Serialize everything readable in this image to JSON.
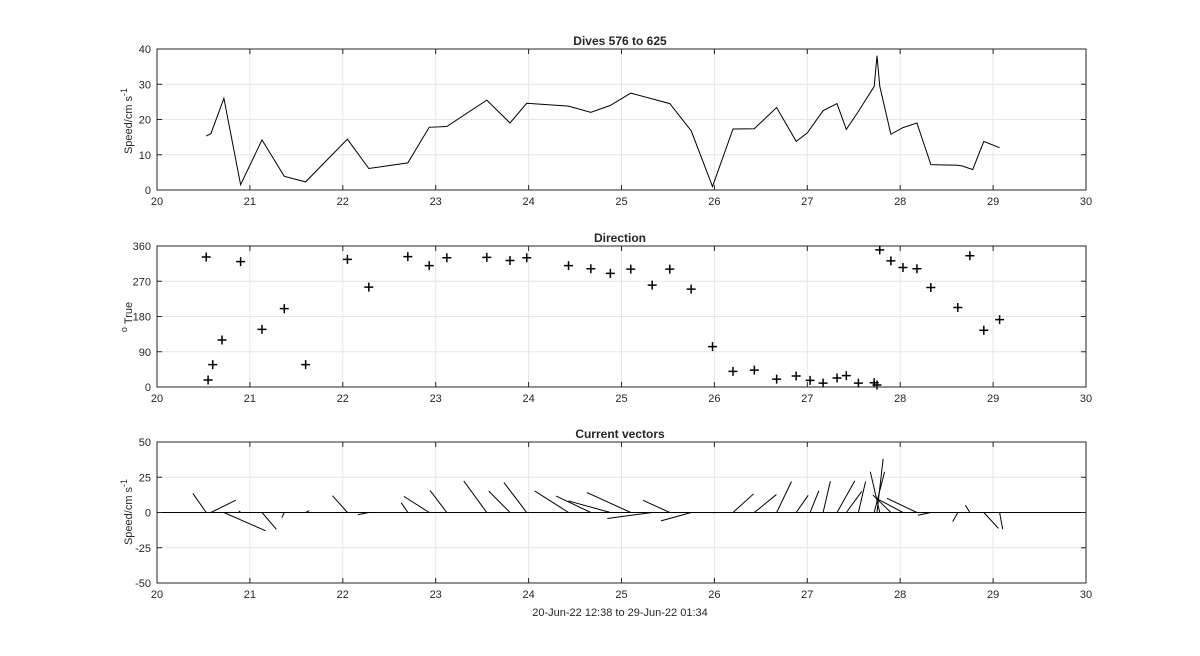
{
  "footer_label": "20-Jun-22 12:38 to 29-Jun-22 01:34",
  "colors": {
    "line": "#000000",
    "grid": "#e6e6e6",
    "axes": "#262626",
    "background": "#ffffff"
  },
  "chart_data": [
    {
      "type": "line",
      "title": "Dives 576 to 625",
      "xlabel": "",
      "ylabel": "Speed/cm s",
      "ylabel_superscript": "-1",
      "xlim": [
        20,
        30
      ],
      "ylim": [
        0,
        40
      ],
      "grid": true,
      "xticks": [
        "20",
        "21",
        "22",
        "23",
        "24",
        "25",
        "26",
        "27",
        "28",
        "29",
        "30"
      ],
      "yticks": [
        "0",
        "10",
        "20",
        "30",
        "40"
      ],
      "series": [
        {
          "x": [
            20.53,
            20.58,
            20.72,
            20.9,
            21.13,
            21.37,
            21.6,
            22.05,
            22.28,
            22.7,
            22.93,
            23.12,
            23.55,
            23.8,
            23.98,
            24.43,
            24.67,
            24.88,
            25.1,
            25.52,
            25.75,
            25.98,
            26.2,
            26.43,
            26.67,
            26.88,
            27.0,
            27.17,
            27.32,
            27.42,
            27.55,
            27.72,
            27.75,
            27.78,
            27.9,
            28.03,
            28.18,
            28.33,
            28.62,
            28.67,
            28.78,
            28.9,
            29.07
          ],
          "y": [
            15.3,
            16,
            26,
            1.5,
            14.2,
            3.9,
            2.3,
            14.4,
            6.1,
            7.7,
            17.8,
            18,
            25.5,
            19,
            24.6,
            23.8,
            22,
            24,
            27.5,
            24.5,
            16.8,
            1,
            17.3,
            17.4,
            23.4,
            13.8,
            16.2,
            22.5,
            24.5,
            17.2,
            22.3,
            29.4,
            38.1,
            29.4,
            15.8,
            17.7,
            19,
            7.2,
            7,
            6.8,
            5.8,
            13.8,
            12
          ]
        }
      ]
    },
    {
      "type": "scatter",
      "title": "Direction",
      "xlabel": "",
      "ylabel": "True",
      "ylabel_prefix": "o",
      "xlim": [
        20,
        30
      ],
      "ylim": [
        0,
        360
      ],
      "grid": true,
      "marker": "+",
      "xticks": [
        "20",
        "21",
        "22",
        "23",
        "24",
        "25",
        "26",
        "27",
        "28",
        "29",
        "30"
      ],
      "yticks": [
        "0",
        "90",
        "180",
        "270",
        "360"
      ],
      "series": [
        {
          "x": [
            20.53,
            20.55,
            20.6,
            20.7,
            20.9,
            21.13,
            21.37,
            21.6,
            22.05,
            22.28,
            22.7,
            22.93,
            23.12,
            23.55,
            23.8,
            23.98,
            24.43,
            24.67,
            24.88,
            25.1,
            25.33,
            25.52,
            25.75,
            25.98,
            26.2,
            26.43,
            26.67,
            26.88,
            27.03,
            27.17,
            27.32,
            27.42,
            27.55,
            27.72,
            27.75,
            27.78,
            27.9,
            28.03,
            28.18,
            28.33,
            28.62,
            28.75,
            28.9,
            29.07
          ],
          "y": [
            332,
            18,
            57,
            120,
            320,
            147,
            200,
            57,
            326,
            255,
            333,
            310,
            330,
            331,
            323,
            330,
            310,
            302,
            290,
            301,
            260,
            301,
            250,
            103,
            40,
            43,
            20,
            28,
            17,
            10,
            23,
            29,
            10,
            11,
            5,
            350,
            322,
            305,
            302,
            254,
            203,
            335,
            145,
            172
          ]
        }
      ]
    },
    {
      "type": "quiver",
      "title": "Current vectors",
      "xlabel": "20-Jun-22 12:38 to 29-Jun-22 01:34",
      "ylabel": "Speed/cm s",
      "ylabel_superscript": "-1",
      "xlim": [
        20,
        30
      ],
      "ylim": [
        -50,
        50
      ],
      "grid": true,
      "xticks": [
        "20",
        "21",
        "22",
        "23",
        "24",
        "25",
        "26",
        "27",
        "28",
        "29",
        "30"
      ],
      "yticks": [
        "-50",
        "-25",
        "0",
        "25",
        "50"
      ],
      "series": [
        {
          "x": [
            20.53,
            20.58,
            20.72,
            20.9,
            21.13,
            21.37,
            21.6,
            22.05,
            22.28,
            22.7,
            22.93,
            23.12,
            23.55,
            23.8,
            23.98,
            24.43,
            24.67,
            24.88,
            25.1,
            25.33,
            25.52,
            25.75,
            25.98,
            26.2,
            26.43,
            26.67,
            26.88,
            27.03,
            27.17,
            27.32,
            27.42,
            27.55,
            27.72,
            27.75,
            27.78,
            27.9,
            28.03,
            28.18,
            28.33,
            28.62,
            28.75,
            28.9,
            29.07
          ],
          "speed": [
            15.3,
            16,
            26,
            1.5,
            14.2,
            3.9,
            2.3,
            14.4,
            6.1,
            7.7,
            17.8,
            18,
            25.5,
            19,
            24.6,
            23.8,
            22,
            24,
            27.5,
            24.5,
            16.8,
            17.3,
            1,
            17.3,
            17.4,
            23.4,
            13.8,
            16.2,
            22.5,
            24.5,
            17.2,
            22.3,
            29.4,
            38.1,
            29.4,
            15.8,
            17.7,
            19,
            7.2,
            7,
            5.8,
            13.8,
            12
          ],
          "direction": [
            332,
            57,
            120,
            320,
            147,
            200,
            57,
            326,
            255,
            333,
            310,
            330,
            331,
            323,
            330,
            310,
            302,
            290,
            301,
            260,
            301,
            250,
            103,
            40,
            43,
            20,
            28,
            17,
            10,
            23,
            29,
            10,
            11,
            5,
            350,
            322,
            305,
            302,
            254,
            203,
            335,
            145,
            172
          ]
        }
      ]
    }
  ]
}
